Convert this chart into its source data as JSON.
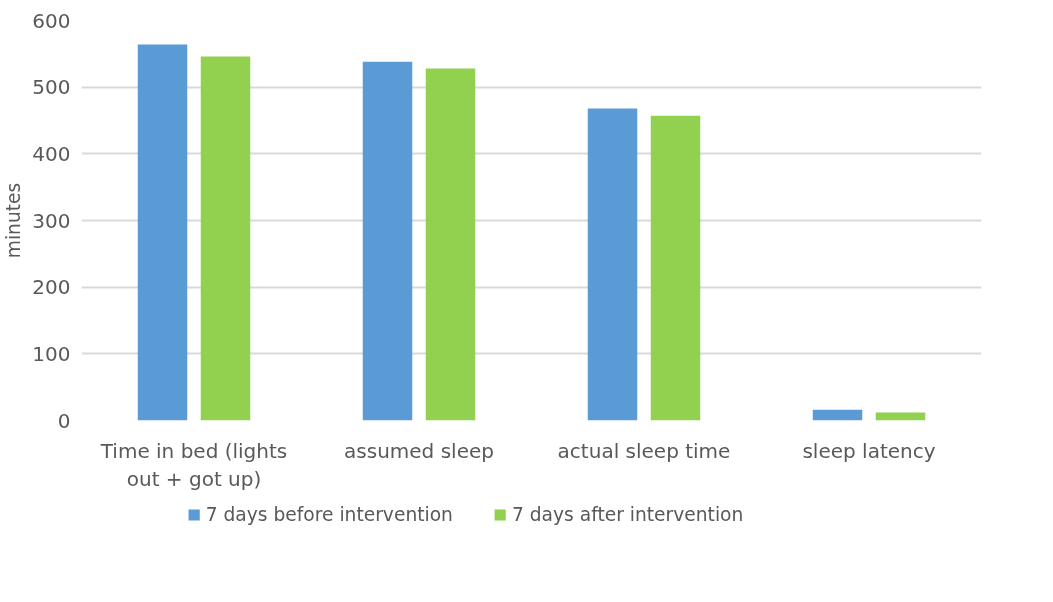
{
  "chart_data": {
    "type": "bar",
    "ylabel": "minutes",
    "categories": [
      "Time in bed (lights out + got up)",
      "assumed sleep",
      "actual sleep time",
      "sleep latency"
    ],
    "series": [
      {
        "name": "7 days before intervention",
        "color": "#5b9bd5",
        "values": [
          564,
          538,
          468,
          16
        ]
      },
      {
        "name": "7 days after intervention",
        "color": "#92d050",
        "values": [
          546,
          528,
          457,
          12
        ]
      }
    ],
    "ylim": [
      0,
      600
    ],
    "yticks": [
      0,
      100,
      200,
      300,
      400,
      500,
      600
    ],
    "grid": "y",
    "legend": "bottom"
  }
}
